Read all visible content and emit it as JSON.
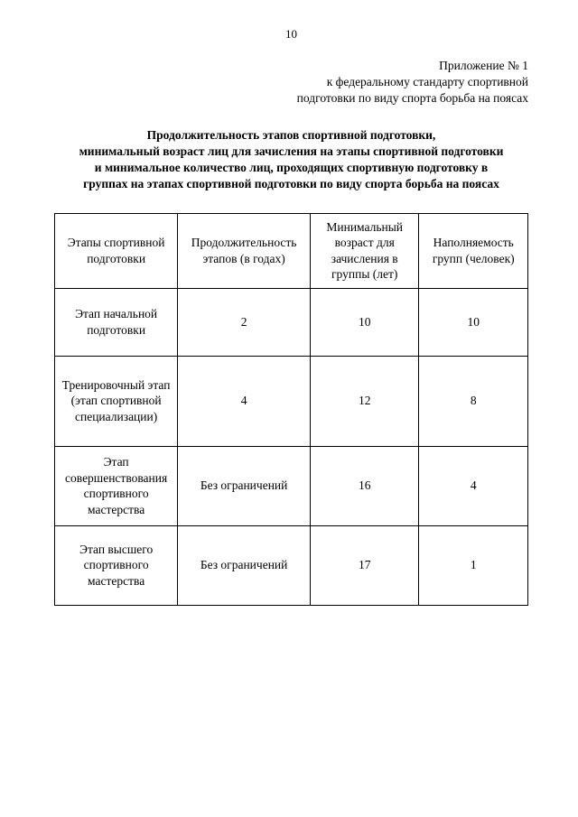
{
  "page_number": "10",
  "appendix": {
    "line1": "Приложение № 1",
    "line2": "к федеральному стандарту спортивной",
    "line3": "подготовки по виду спорта борьба на поясах"
  },
  "title": {
    "line1": "Продолжительность этапов спортивной подготовки,",
    "line2": "минимальный возраст лиц для зачисления на этапы спортивной подготовки",
    "line3": "и минимальное количество лиц, проходящих спортивную подготовку в",
    "line4": "группах на этапах спортивной подготовки по виду спорта борьба на поясах"
  },
  "table": {
    "headers": {
      "col1": "Этапы спортивной подготовки",
      "col2": "Продолжительность этапов (в годах)",
      "col3": "Минимальный возраст для зачисления в группы (лет)",
      "col4": "Наполняемость групп (человек)"
    },
    "rows": [
      {
        "stage": "Этап начальной подготовки",
        "duration": "2",
        "age": "10",
        "capacity": "10"
      },
      {
        "stage": "Тренировочный этап (этап спортивной специализации)",
        "duration": "4",
        "age": "12",
        "capacity": "8"
      },
      {
        "stage": "Этап совершенствования спортивного мастерства",
        "duration": "Без ограничений",
        "age": "16",
        "capacity": "4"
      },
      {
        "stage": "Этап высшего спортивного мастерства",
        "duration": "Без ограничений",
        "age": "17",
        "capacity": "1"
      }
    ]
  }
}
